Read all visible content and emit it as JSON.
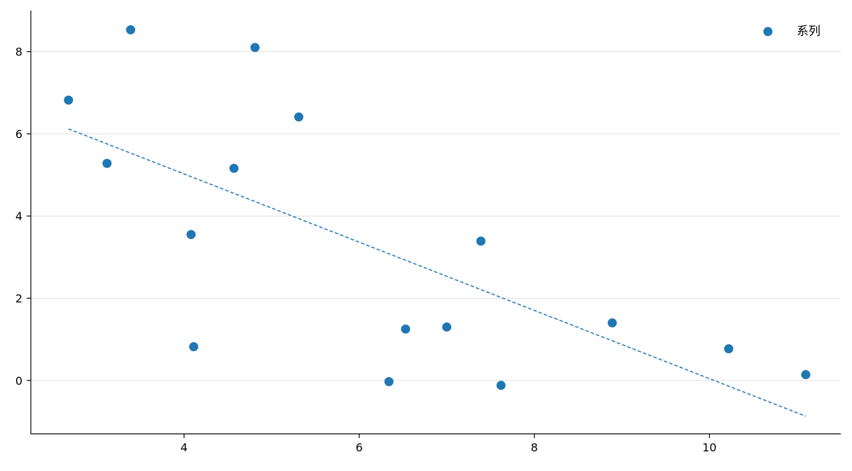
{
  "chart_data": {
    "type": "scatter",
    "title": "",
    "xlabel": "",
    "ylabel": "",
    "xlim": [
      2.25,
      11.5
    ],
    "ylim": [
      -1.3,
      9.0
    ],
    "xticks": [
      4,
      6,
      8,
      10
    ],
    "yticks": [
      0,
      2,
      4,
      6,
      8
    ],
    "grid": "horizontal",
    "legend_position": "top-right",
    "series": [
      {
        "name": "系列",
        "color": "#1f77b4",
        "points": [
          {
            "x": 2.68,
            "y": 6.82
          },
          {
            "x": 3.12,
            "y": 5.28
          },
          {
            "x": 3.39,
            "y": 8.53
          },
          {
            "x": 4.08,
            "y": 3.55
          },
          {
            "x": 4.11,
            "y": 0.82
          },
          {
            "x": 4.57,
            "y": 5.16
          },
          {
            "x": 4.81,
            "y": 8.1
          },
          {
            "x": 5.31,
            "y": 6.41
          },
          {
            "x": 6.34,
            "y": -0.03
          },
          {
            "x": 6.53,
            "y": 1.25
          },
          {
            "x": 7.0,
            "y": 1.3
          },
          {
            "x": 7.39,
            "y": 3.39
          },
          {
            "x": 7.62,
            "y": -0.12
          },
          {
            "x": 8.89,
            "y": 1.4
          },
          {
            "x": 10.22,
            "y": 0.77
          },
          {
            "x": 11.1,
            "y": 0.14
          }
        ]
      }
    ],
    "trendline": {
      "style": "dashed",
      "color": "#1f77b4",
      "x": [
        2.68,
        11.1
      ],
      "y": [
        6.12,
        -0.87
      ]
    }
  }
}
